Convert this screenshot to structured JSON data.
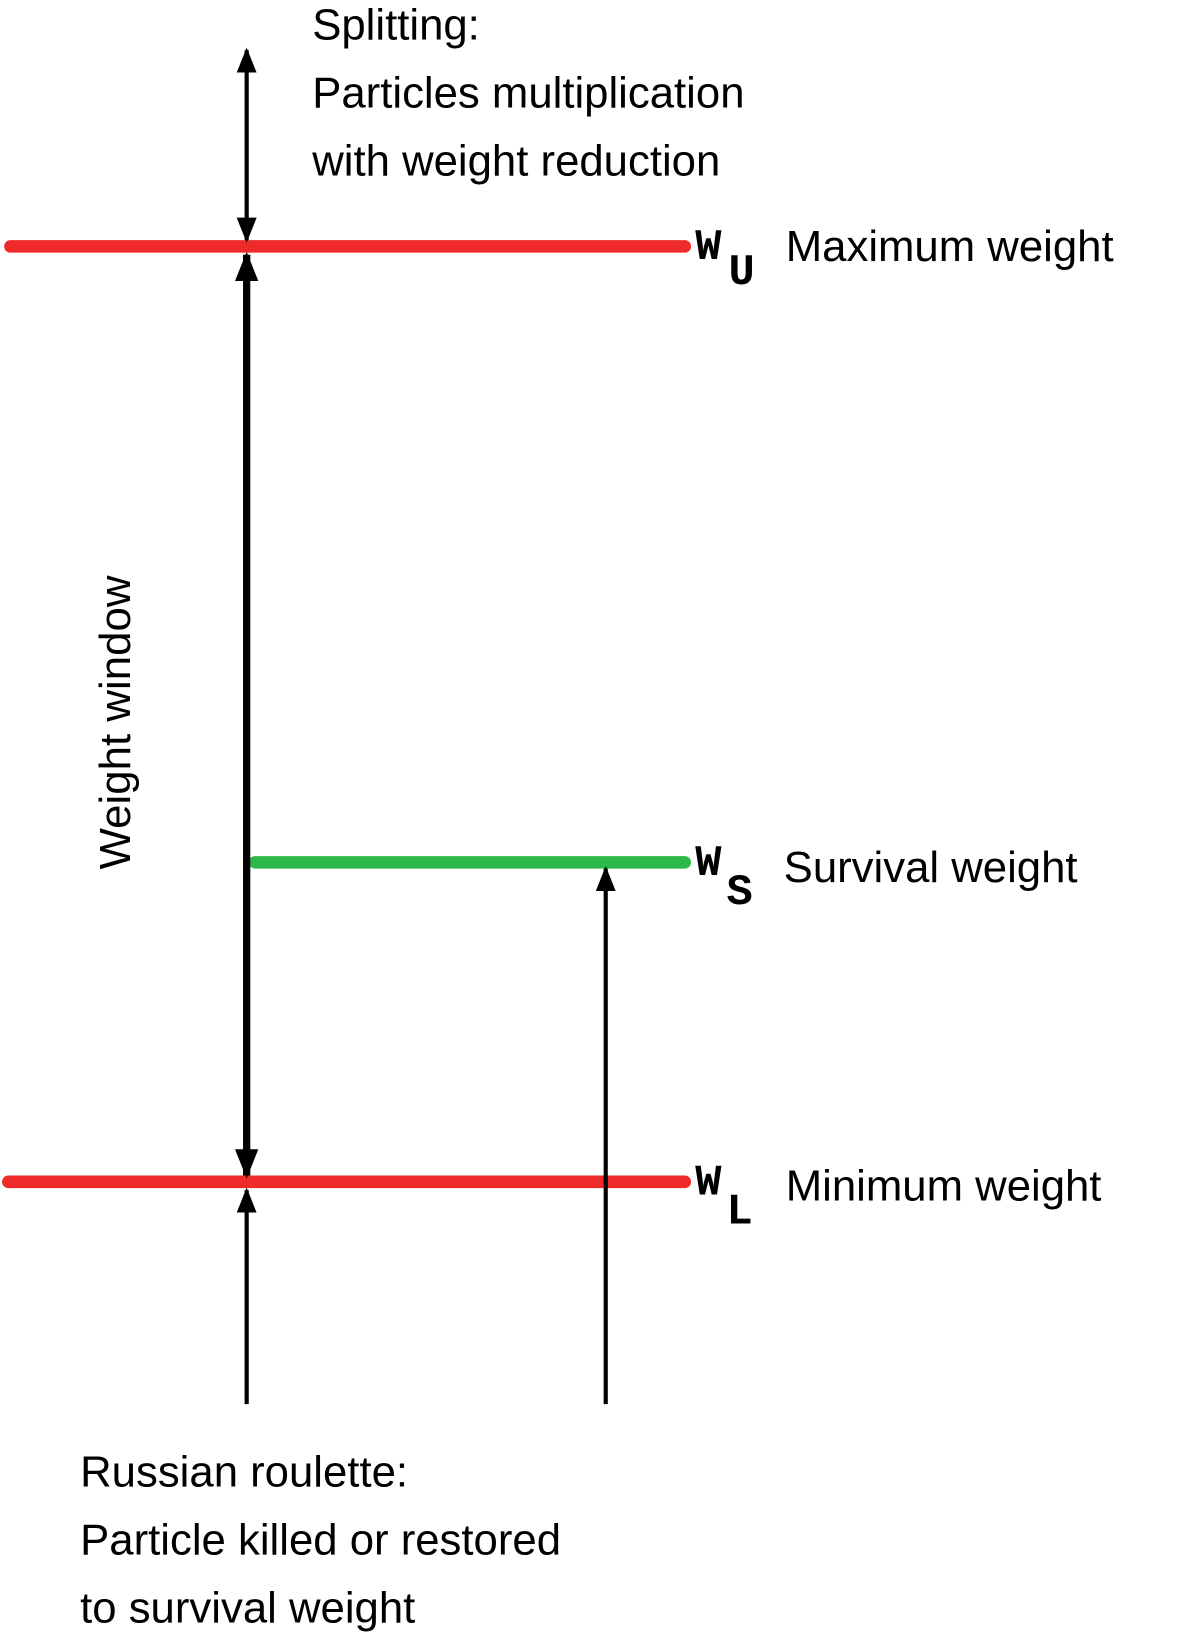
{
  "top_note": {
    "lines": [
      "Splitting:",
      "Particles multiplication",
      "with weight reduction"
    ]
  },
  "levels": [
    {
      "symbol": "W",
      "subscript": "U",
      "label": "Maximum weight"
    },
    {
      "symbol": "W",
      "subscript": "S",
      "label": "Survival weight"
    },
    {
      "symbol": "W",
      "subscript": "L",
      "label": "Minimum weight"
    }
  ],
  "axis_label": "Weight window",
  "bottom_note": {
    "lines": [
      "Russian roulette:",
      "Particle killed or restored",
      "to survival weight"
    ]
  }
}
